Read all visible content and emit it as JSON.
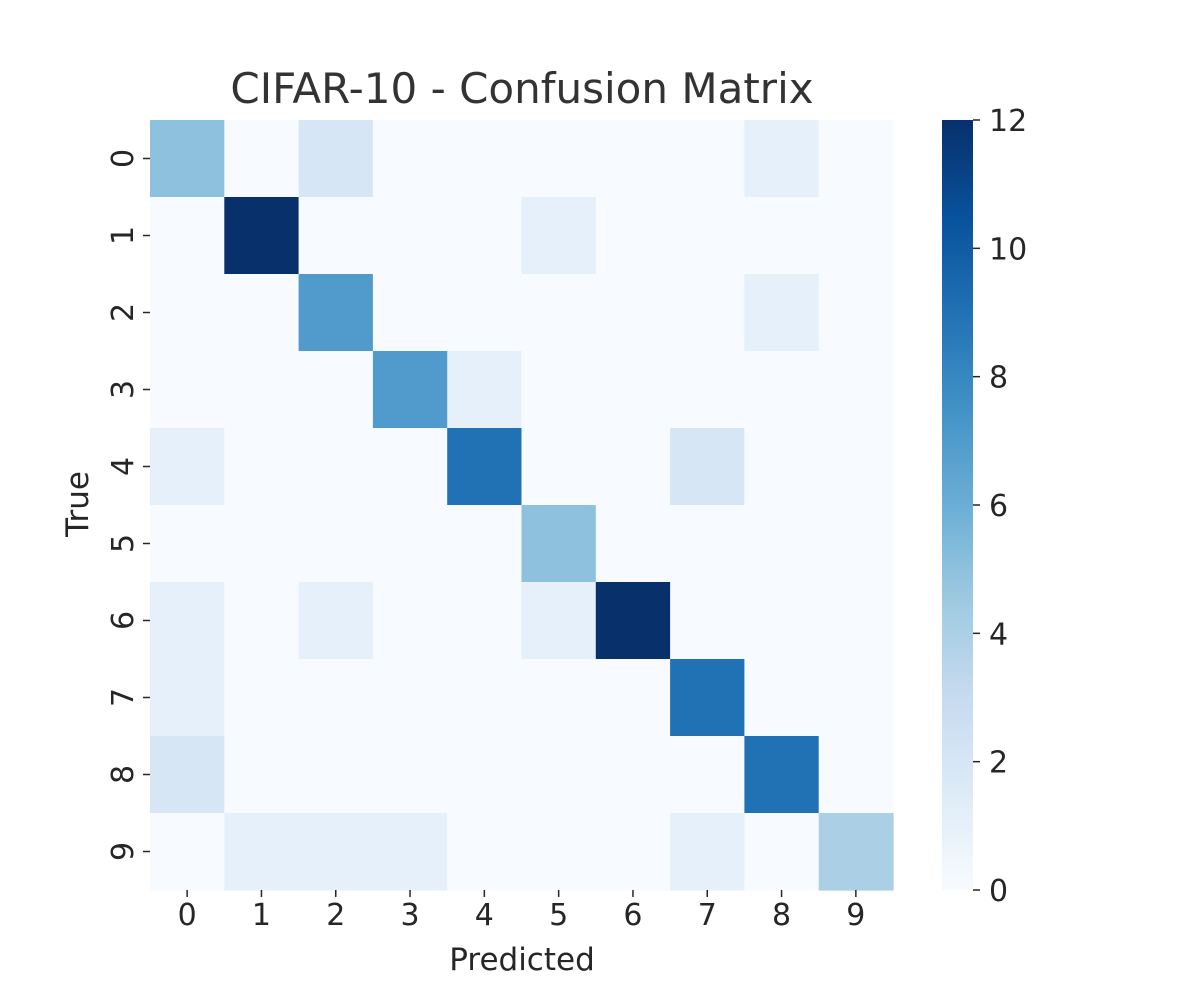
{
  "chart_data": {
    "type": "heatmap",
    "title": "CIFAR-10 - Confusion Matrix",
    "xlabel": "Predicted",
    "ylabel": "True",
    "x_categories": [
      "0",
      "1",
      "2",
      "3",
      "4",
      "5",
      "6",
      "7",
      "8",
      "9"
    ],
    "y_categories": [
      "0",
      "1",
      "2",
      "3",
      "4",
      "5",
      "6",
      "7",
      "8",
      "9"
    ],
    "values": [
      [
        5,
        0,
        2,
        0,
        0,
        0,
        0,
        0,
        1,
        0
      ],
      [
        0,
        12,
        0,
        0,
        0,
        1,
        0,
        0,
        0,
        0
      ],
      [
        0,
        0,
        7,
        0,
        0,
        0,
        0,
        0,
        1,
        0
      ],
      [
        0,
        0,
        0,
        7,
        1,
        0,
        0,
        0,
        0,
        0
      ],
      [
        1,
        0,
        0,
        0,
        9,
        0,
        0,
        2,
        0,
        0
      ],
      [
        0,
        0,
        0,
        0,
        0,
        5,
        0,
        0,
        0,
        0
      ],
      [
        1,
        0,
        1,
        0,
        0,
        1,
        12,
        0,
        0,
        0
      ],
      [
        1,
        0,
        0,
        0,
        0,
        0,
        0,
        9,
        0,
        0
      ],
      [
        2,
        0,
        0,
        0,
        0,
        0,
        0,
        0,
        9,
        0
      ],
      [
        0,
        1,
        1,
        1,
        0,
        0,
        0,
        1,
        0,
        4
      ]
    ],
    "colorbar": {
      "min": 0,
      "max": 12,
      "ticks": [
        0,
        2,
        4,
        6,
        8,
        10,
        12
      ],
      "colormap": "Blues",
      "color_low": "#f7fbff",
      "color_high": "#08306b"
    }
  }
}
